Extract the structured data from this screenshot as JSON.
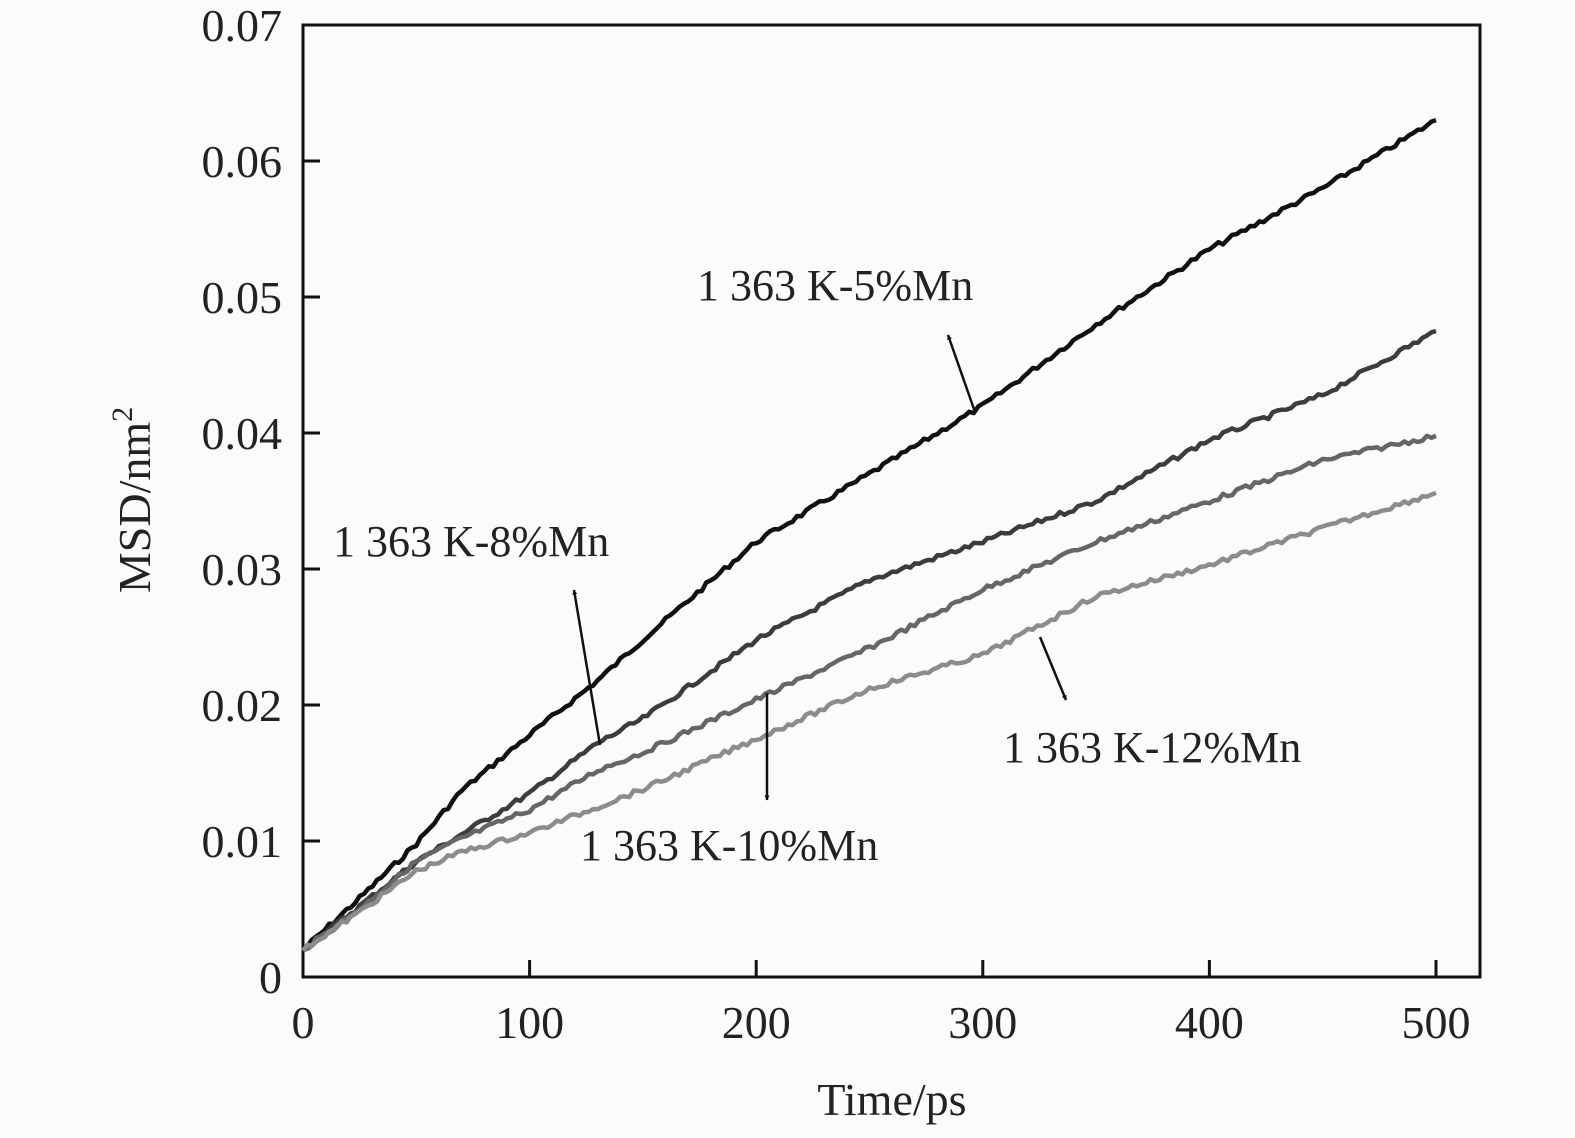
{
  "chart_data": {
    "type": "line",
    "xlabel": "Time/ps",
    "ylabel": "MSD/nm",
    "ylabel_superscript": "2",
    "xlim": [
      0,
      520
    ],
    "ylim": [
      0,
      0.07
    ],
    "xticks": [
      "0",
      "100",
      "200",
      "300",
      "400",
      "500"
    ],
    "yticks": [
      "0",
      "0.01",
      "0.02",
      "0.03",
      "0.04",
      "0.05",
      "0.06",
      "0.07"
    ],
    "grid": false,
    "x": [
      0,
      25,
      50,
      70,
      100,
      130,
      150,
      200,
      250,
      300,
      350,
      400,
      450,
      500
    ],
    "series": [
      {
        "name": "1 363 K-5%Mn",
        "color": "#111111",
        "values": [
          0.002,
          0.0058,
          0.0098,
          0.0137,
          0.0178,
          0.0218,
          0.0248,
          0.032,
          0.037,
          0.042,
          0.048,
          0.0535,
          0.058,
          0.063
        ]
      },
      {
        "name": "1 363 K-8%Mn",
        "color": "#3c3c3c",
        "values": [
          0.002,
          0.0052,
          0.0085,
          0.0105,
          0.0135,
          0.0172,
          0.019,
          0.0248,
          0.0292,
          0.032,
          0.035,
          0.0395,
          0.0428,
          0.0475
        ]
      },
      {
        "name": "1 363 K-10%Mn",
        "color": "#666666",
        "values": [
          0.002,
          0.005,
          0.0085,
          0.0102,
          0.0123,
          0.0152,
          0.0165,
          0.0204,
          0.0242,
          0.0285,
          0.032,
          0.035,
          0.038,
          0.0398
        ]
      },
      {
        "name": "1 363 K-12%Mn",
        "color": "#8c8c8c",
        "values": [
          0.002,
          0.0048,
          0.0078,
          0.0092,
          0.0106,
          0.0125,
          0.0138,
          0.0175,
          0.0212,
          0.0237,
          0.028,
          0.0303,
          0.033,
          0.0356
        ]
      }
    ],
    "annotations": [
      "1 363 K-5%Mn",
      "1 363 K-8%Mn",
      "1 363 K-10%Mn",
      "1 363 K-12%Mn"
    ]
  }
}
